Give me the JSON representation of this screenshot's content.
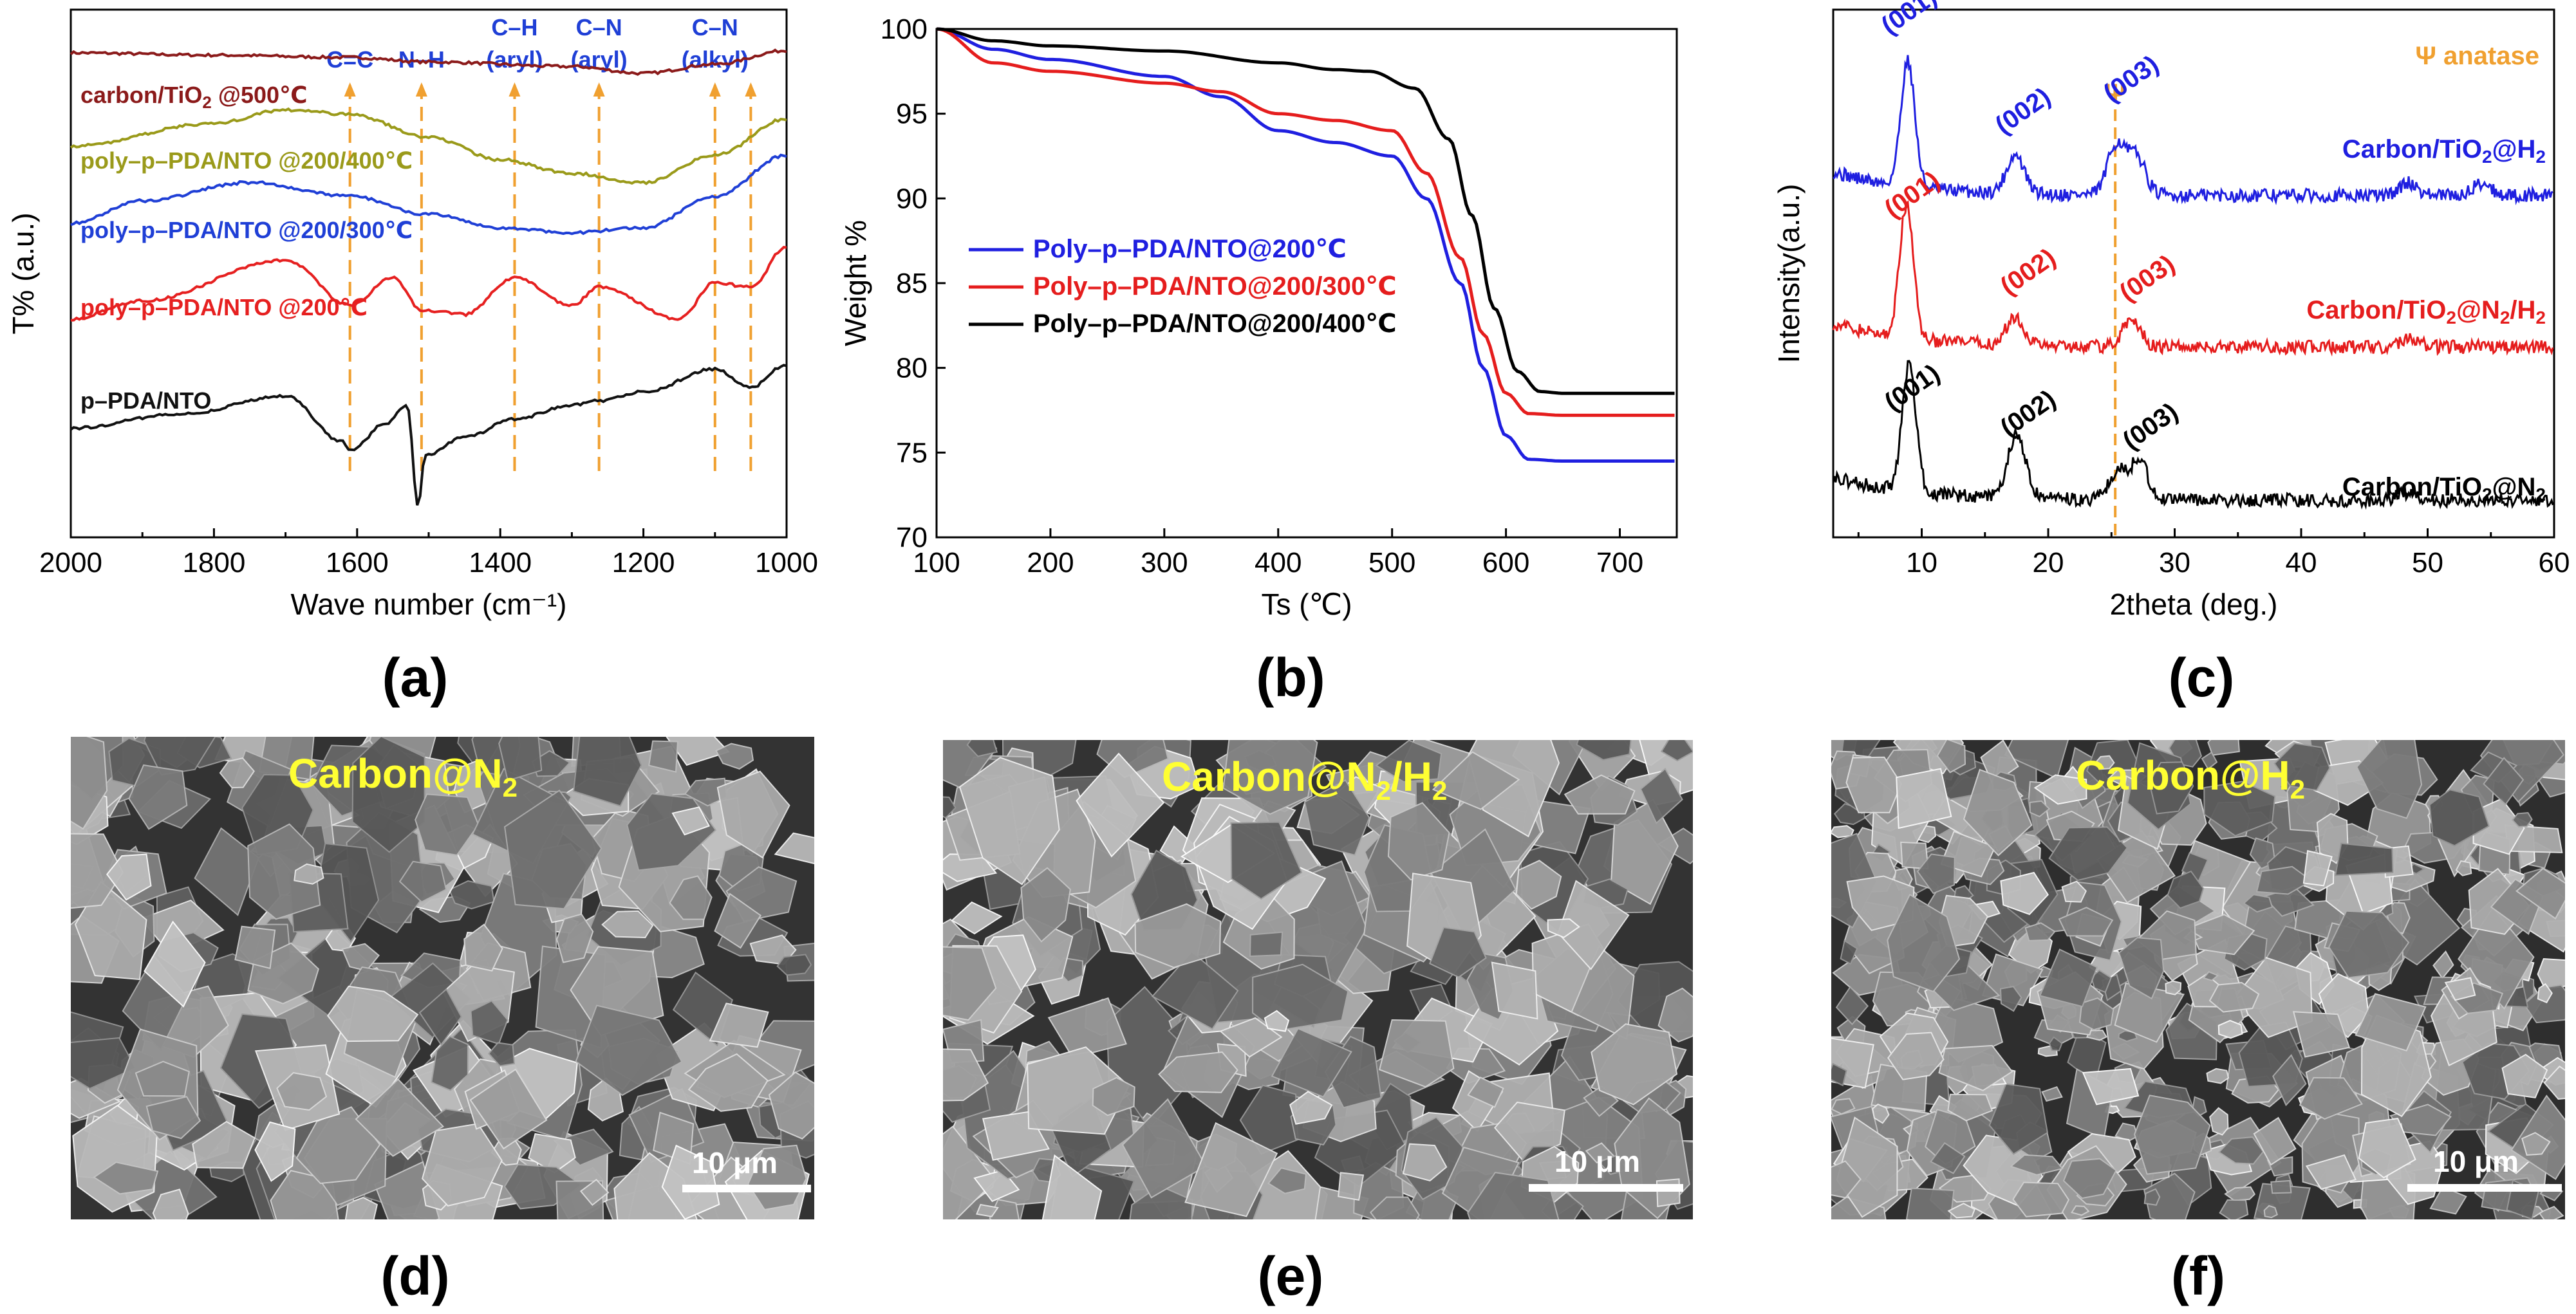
{
  "chart_data": [
    {
      "type": "line",
      "panel": "(a)",
      "title": "",
      "xlabel": "Wave number (cm⁻¹)",
      "ylabel": "T% (a.u.)",
      "xlim": [
        2000,
        1000
      ],
      "x_ticks": [
        "2000",
        "1800",
        "1600",
        "1400",
        "1200",
        "1000"
      ],
      "annotations": [
        {
          "label": "C=C",
          "x": 1610
        },
        {
          "label": "N–H",
          "x": 1510
        },
        {
          "label": "C–H",
          "label2": "(aryl)",
          "x": 1380
        },
        {
          "label": "C–N",
          "label2": "(aryl)",
          "x": 1262
        },
        {
          "label": "C–N",
          "label2": "(alkyl)",
          "x": 1100
        },
        {
          "label": "",
          "label2": "",
          "x": 1050
        }
      ],
      "series": [
        {
          "name": "carbon/TiO",
          "sub": "2",
          "suffix": " @500℃",
          "color": "#8b1a1a",
          "x": [
            2000,
            1800,
            1610,
            1500,
            1300,
            1200,
            1100,
            1000
          ],
          "y": [
            8.85,
            8.8,
            8.75,
            8.65,
            8.55,
            8.4,
            8.6,
            8.9
          ]
        },
        {
          "name": "poly–p–PDA/NTO @200/400℃",
          "color": "#9a9a1a",
          "x": [
            2000,
            1800,
            1700,
            1610,
            1500,
            1400,
            1300,
            1200,
            1100,
            1000
          ],
          "y": [
            6.8,
            7.3,
            7.6,
            7.5,
            7.0,
            6.5,
            6.2,
            6.0,
            6.6,
            7.4
          ]
        },
        {
          "name": "poly–p–PDA/NTO @200/300℃",
          "color": "#1f3fd6",
          "x": [
            2000,
            1900,
            1750,
            1610,
            1500,
            1400,
            1300,
            1200,
            1100,
            1000
          ],
          "y": [
            5.1,
            5.6,
            6.0,
            5.7,
            5.3,
            5.0,
            4.9,
            5.0,
            5.7,
            6.6
          ]
        },
        {
          "name": "poly–p–PDA/NTO @200℃",
          "color": "#e62020",
          "x": [
            2000,
            1900,
            1700,
            1610,
            1550,
            1510,
            1450,
            1380,
            1300,
            1262,
            1150,
            1100,
            1050,
            1000
          ],
          "y": [
            3.0,
            3.4,
            4.3,
            3.3,
            3.9,
            3.2,
            3.1,
            3.9,
            3.3,
            3.7,
            3.0,
            3.8,
            3.7,
            4.6
          ]
        },
        {
          "name": "p–PDA/NTO",
          "color": "#111111",
          "x": [
            2000,
            1850,
            1700,
            1620,
            1610,
            1560,
            1530,
            1515,
            1505,
            1450,
            1380,
            1300,
            1262,
            1200,
            1100,
            1050,
            1000
          ],
          "y": [
            0.6,
            0.9,
            1.3,
            0.3,
            0.1,
            0.7,
            1.1,
            -1.1,
            0.0,
            0.4,
            0.8,
            1.1,
            1.2,
            1.4,
            1.9,
            1.5,
            2.0
          ]
        }
      ]
    },
    {
      "type": "line",
      "panel": "(b)",
      "title": "",
      "xlabel": "Ts (℃)",
      "ylabel": "Weight %",
      "xlim": [
        100,
        750
      ],
      "ylim": [
        70,
        100
      ],
      "x_ticks": [
        "100",
        "200",
        "300",
        "400",
        "500",
        "600",
        "700"
      ],
      "y_ticks": [
        "70",
        "75",
        "80",
        "85",
        "90",
        "95",
        "100"
      ],
      "legend": "center-left",
      "series": [
        {
          "name": "Poly–p–PDA/NTO@200℃",
          "color": "#1f1fe0",
          "x": [
            100,
            150,
            200,
            300,
            350,
            400,
            450,
            500,
            530,
            560,
            580,
            600,
            620,
            650,
            700,
            750
          ],
          "y": [
            100,
            98.8,
            98.2,
            97.2,
            96.0,
            94.0,
            93.3,
            92.5,
            90.0,
            85.0,
            80.0,
            76.0,
            74.6,
            74.5,
            74.5,
            74.5
          ]
        },
        {
          "name": "Poly–p–PDA/NTO@200/300℃",
          "color": "#e51d1d",
          "x": [
            100,
            150,
            200,
            300,
            350,
            400,
            450,
            500,
            530,
            560,
            580,
            600,
            620,
            650,
            700,
            750
          ],
          "y": [
            100,
            98.0,
            97.5,
            96.8,
            96.3,
            95.0,
            94.6,
            94.0,
            91.5,
            86.5,
            82.0,
            78.5,
            77.3,
            77.2,
            77.2,
            77.2
          ]
        },
        {
          "name": "Poly–p–PDA/NTO@200/400℃",
          "color": "#000000",
          "x": [
            100,
            150,
            200,
            300,
            400,
            450,
            480,
            520,
            550,
            570,
            590,
            610,
            630,
            650,
            700,
            750
          ],
          "y": [
            100,
            99.3,
            99.0,
            98.7,
            98.0,
            97.6,
            97.5,
            96.5,
            93.5,
            89.0,
            83.5,
            79.8,
            78.6,
            78.5,
            78.5,
            78.5
          ]
        }
      ]
    },
    {
      "type": "line",
      "panel": "(c)",
      "title": "",
      "xlabel": "2theta (deg.)",
      "ylabel": "Intensity(a.u.)",
      "xlim": [
        3,
        60
      ],
      "x_ticks": [
        "10",
        "20",
        "30",
        "40",
        "50",
        "60"
      ],
      "legend_note": "Ψ  anatase",
      "marker_line_x": 25.3,
      "marker_symbol": "Ψ",
      "peak_labels": [
        "(001)",
        "(002)",
        "(003)"
      ],
      "series": [
        {
          "name": "Carbon/TiO",
          "sub": "2",
          "suffix": "@H",
          "sub2": "2",
          "color": "#1f1fe0",
          "offset": 2,
          "peaks": [
            {
              "x": 8.9,
              "h": 1.0
            },
            {
              "x": 17.4,
              "h": 0.3
            },
            {
              "x": 25.4,
              "h": 0.4
            },
            {
              "x": 27.0,
              "h": 0.3
            },
            {
              "x": 48.5,
              "h": 0.1
            },
            {
              "x": 54.3,
              "h": 0.1
            }
          ]
        },
        {
          "name": "Carbon/TiO",
          "sub": "2",
          "suffix": "@N",
          "sub2": "2",
          "suffix2": "/H",
          "sub3": "2",
          "color": "#e51d1d",
          "offset": 1,
          "peaks": [
            {
              "x": 8.8,
              "h": 1.05
            },
            {
              "x": 17.4,
              "h": 0.22
            },
            {
              "x": 26.6,
              "h": 0.22
            },
            {
              "x": 48.6,
              "h": 0.08
            }
          ]
        },
        {
          "name": "Carbon/TiO",
          "sub": "2",
          "suffix": "@N",
          "sub2": "2",
          "color": "#000000",
          "offset": 0,
          "peaks": [
            {
              "x": 9.0,
              "h": 1.0
            },
            {
              "x": 17.5,
              "h": 0.5
            },
            {
              "x": 25.5,
              "h": 0.22
            },
            {
              "x": 27.2,
              "h": 0.3
            },
            {
              "x": 48.3,
              "h": 0.06
            }
          ]
        }
      ]
    }
  ],
  "panel_labels": [
    "(a)",
    "(b)",
    "(c)",
    "(d)",
    "(e)",
    "(f)"
  ],
  "sem_images": [
    {
      "title": "Carbon@N",
      "sub": "2",
      "suffix": "",
      "sub2": "",
      "scale": "10 μm"
    },
    {
      "title": "Carbon@N",
      "sub": "2",
      "suffix": "/H",
      "sub2": "2",
      "scale": "10 μm"
    },
    {
      "title": "Carbon@H",
      "sub": "2",
      "suffix": "",
      "sub2": "",
      "scale": "10 μm"
    }
  ],
  "colors": {
    "annotation_line": "#f0a030",
    "annotation_text": "#1f3fd6",
    "sem_title": "#ffff33"
  }
}
